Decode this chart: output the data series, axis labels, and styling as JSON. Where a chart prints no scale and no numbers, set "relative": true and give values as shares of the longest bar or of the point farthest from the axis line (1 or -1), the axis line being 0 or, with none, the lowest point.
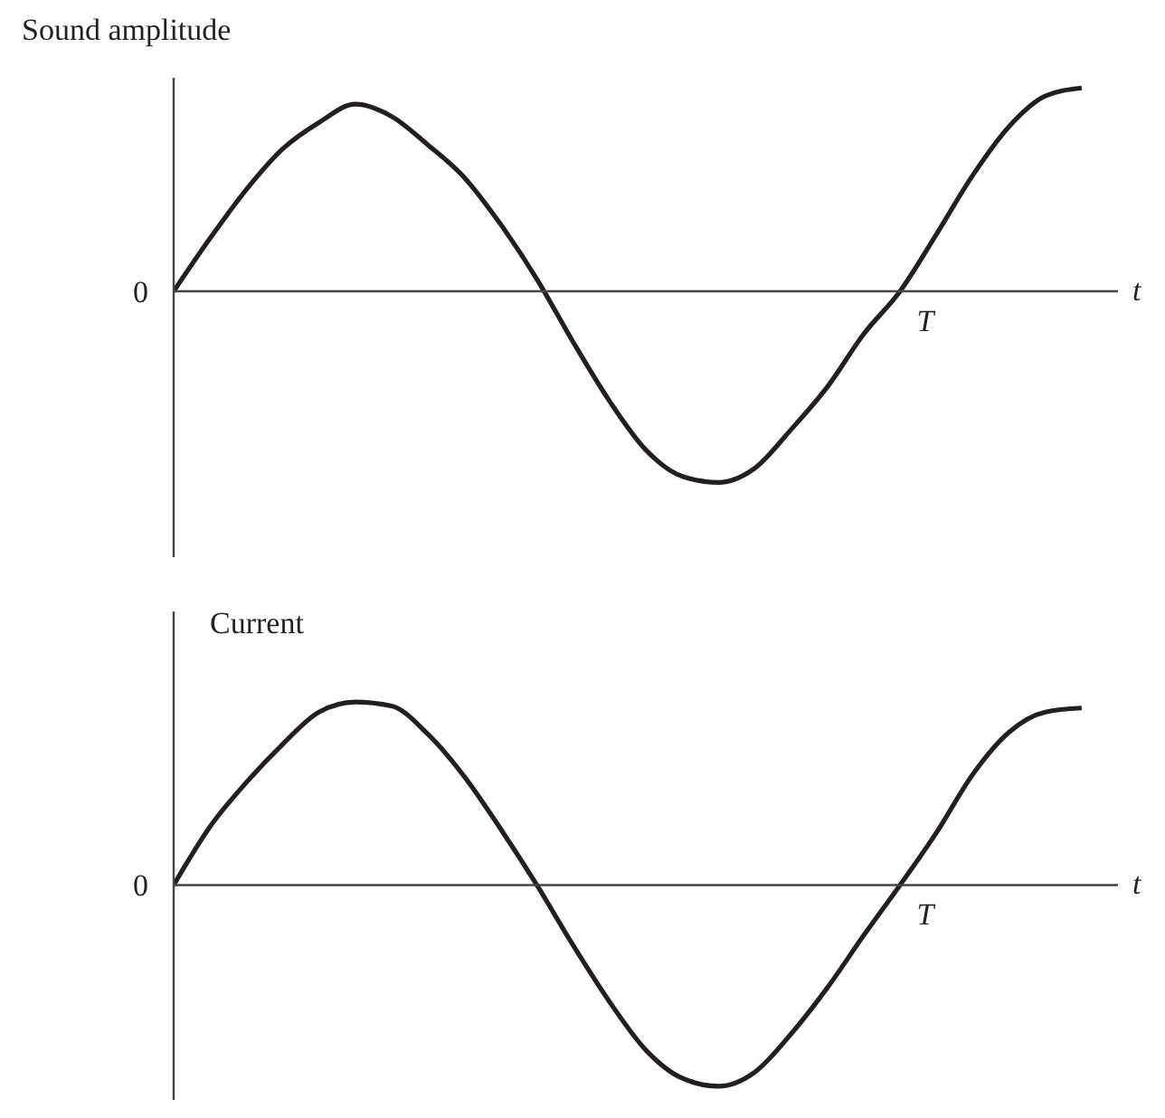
{
  "chart_data": [
    {
      "type": "line",
      "ylabel": "Sound amplitude",
      "xlabel": "t",
      "relative": true,
      "annotations": [
        "0",
        "T"
      ],
      "categories": [
        null,
        null,
        null,
        null,
        null,
        null,
        null,
        null,
        null,
        null,
        null,
        null,
        null,
        null,
        null,
        null,
        null,
        null,
        null,
        null,
        null,
        null,
        null,
        null,
        null,
        null,
        null
      ],
      "series": [
        {
          "color": "#231f20",
          "values": [
            0,
            0.26,
            0.5,
            0.7,
            0.83,
            0.92,
            0.86,
            0.72,
            0.56,
            0.33,
            0.06,
            -0.25,
            -0.54,
            -0.78,
            -0.91,
            -0.94,
            -0.87,
            -0.68,
            -0.47,
            -0.21,
            0,
            0.28,
            0.57,
            0.81,
            0.96,
            1,
            null
          ]
        }
      ]
    },
    {
      "type": "line",
      "ylabel": "Current",
      "xlabel": "t",
      "relative": true,
      "annotations": [
        "0",
        "T"
      ],
      "categories": [
        null,
        null,
        null,
        null,
        null,
        null,
        null,
        null,
        null,
        null,
        null,
        null,
        null,
        null,
        null,
        null,
        null,
        null,
        null,
        null,
        null,
        null,
        null,
        null,
        null,
        null,
        null
      ],
      "series": [
        {
          "color": "#231f20",
          "values": [
            0,
            0.29,
            0.51,
            0.7,
            0.86,
            0.91,
            0.89,
            0.75,
            0.54,
            0.28,
            0,
            -0.3,
            -0.58,
            -0.82,
            -0.96,
            -1.0,
            -0.93,
            -0.74,
            -0.51,
            -0.25,
            0,
            0.26,
            0.55,
            0.76,
            0.86,
            0.88,
            null
          ]
        }
      ]
    }
  ]
}
